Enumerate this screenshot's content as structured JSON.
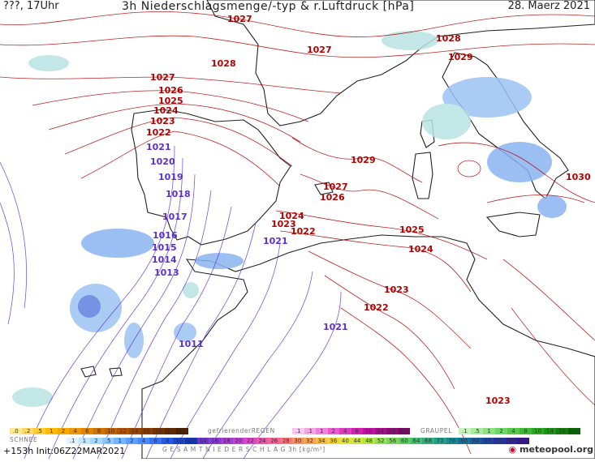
{
  "header": {
    "left": "???, 17Uhr",
    "title": "3h Niederschlagsmenge/-typ & r.Luftdruck [hPa]",
    "date": "28. Maerz 2021"
  },
  "map": {
    "high_color": "#b30000",
    "low_color": "#5a2fd1",
    "sea_color": "#ffffff",
    "isobar_labels": [
      {
        "name": "isobar-label-1027-north",
        "text": "1027",
        "type": "high"
      },
      {
        "name": "isobar-label-1028-biscay",
        "text": "1028",
        "type": "high"
      },
      {
        "name": "isobar-label-1027-france",
        "text": "1027",
        "type": "high"
      },
      {
        "name": "isobar-label-1028-alps",
        "text": "1028",
        "type": "high"
      },
      {
        "name": "isobar-label-1029-alps",
        "text": "1029",
        "type": "high"
      },
      {
        "name": "isobar-label-1027-atlantic",
        "text": "1027",
        "type": "high"
      },
      {
        "name": "isobar-label-1026",
        "text": "1026",
        "type": "high"
      },
      {
        "name": "isobar-label-1025",
        "text": "1025",
        "type": "high"
      },
      {
        "name": "isobar-label-1024",
        "text": "1024",
        "type": "high"
      },
      {
        "name": "isobar-label-1023",
        "text": "1023",
        "type": "high"
      },
      {
        "name": "isobar-label-1022",
        "text": "1022",
        "type": "high"
      },
      {
        "name": "isobar-label-1021-portugal",
        "text": "1021",
        "type": "low"
      },
      {
        "name": "isobar-label-1020",
        "text": "1020",
        "type": "low"
      },
      {
        "name": "isobar-label-1019",
        "text": "1019",
        "type": "low"
      },
      {
        "name": "isobar-label-1018",
        "text": "1018",
        "type": "low"
      },
      {
        "name": "isobar-label-1017",
        "text": "1017",
        "type": "low"
      },
      {
        "name": "isobar-label-1016",
        "text": "1016",
        "type": "low"
      },
      {
        "name": "isobar-label-1015",
        "text": "1015",
        "type": "low"
      },
      {
        "name": "isobar-label-1014",
        "text": "1014",
        "type": "low"
      },
      {
        "name": "isobar-label-1013",
        "text": "1013",
        "type": "low"
      },
      {
        "name": "isobar-label-1011",
        "text": "1011",
        "type": "low"
      },
      {
        "name": "isobar-label-1029-med",
        "text": "1029",
        "type": "high"
      },
      {
        "name": "isobar-label-1030",
        "text": "1030",
        "type": "high"
      },
      {
        "name": "isobar-label-1027-balearic",
        "text": "1027",
        "type": "high"
      },
      {
        "name": "isobar-label-1026-balearic",
        "text": "1026",
        "type": "high"
      },
      {
        "name": "isobar-label-1024-spain",
        "text": "1024",
        "type": "high"
      },
      {
        "name": "isobar-label-1023-spain",
        "text": "1023",
        "type": "high"
      },
      {
        "name": "isobar-label-1022-spain",
        "text": "1022",
        "type": "high"
      },
      {
        "name": "isobar-label-1021-alboran",
        "text": "1021",
        "type": "low"
      },
      {
        "name": "isobar-label-1025-algeria",
        "text": "1025",
        "type": "high"
      },
      {
        "name": "isobar-label-1024-tunisia",
        "text": "1024",
        "type": "high"
      },
      {
        "name": "isobar-label-1023-algeria",
        "text": "1023",
        "type": "high"
      },
      {
        "name": "isobar-label-1022-algeria",
        "text": "1022",
        "type": "high"
      },
      {
        "name": "isobar-label-1021-sahara",
        "text": "1021",
        "type": "low"
      },
      {
        "name": "isobar-label-1023-libya",
        "text": "1023",
        "type": "high"
      }
    ]
  },
  "legend": {
    "snow_label": "SCHNEE",
    "snow_cells": [
      ".0",
      ".2",
      ".5",
      "1",
      "2",
      "4",
      "6",
      "8",
      "10",
      "12",
      "14",
      "16",
      "18",
      "20",
      "25+"
    ],
    "freezing_label": "gefrierenderREGEN",
    "freezing_cells": [
      ".1",
      ".1",
      "1",
      "2",
      "4",
      "8",
      "10",
      "14",
      "16",
      "2025+"
    ],
    "graupel_label": "GRAUPEL",
    "graupel_cells": [
      ".1",
      ".5",
      "1",
      "2",
      "4",
      "8",
      "10",
      "14",
      "16",
      "2025+"
    ],
    "total_label": "G E S A M T N I E D E R S C H L A G   3h   [kg/m²]",
    "total_cells": [
      ".1",
      "1",
      "2",
      ".5",
      "1",
      "2",
      "4",
      "6",
      "8",
      "10",
      "12",
      "14",
      "16",
      "18",
      "20",
      "22",
      "24",
      "26",
      "28",
      "30",
      "32",
      "34",
      "36",
      "40",
      "44",
      "48",
      "52",
      "56",
      "60",
      "64",
      "68",
      "72",
      "76",
      "80",
      "84",
      "88",
      "92",
      "96",
      "100"
    ]
  },
  "footer": {
    "run": "+153h Init:06Z22MAR2021",
    "brand": "meteopool.org"
  }
}
